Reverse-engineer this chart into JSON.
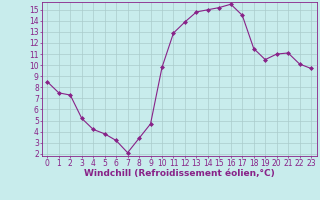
{
  "x": [
    0,
    1,
    2,
    3,
    4,
    5,
    6,
    7,
    8,
    9,
    10,
    11,
    12,
    13,
    14,
    15,
    16,
    17,
    18,
    19,
    20,
    21,
    22,
    23
  ],
  "y": [
    8.5,
    7.5,
    7.3,
    5.2,
    4.2,
    3.8,
    3.2,
    2.1,
    3.4,
    4.7,
    9.8,
    12.9,
    13.9,
    14.8,
    15.0,
    15.2,
    15.5,
    14.5,
    11.5,
    10.5,
    11.0,
    11.1,
    10.1,
    9.7
  ],
  "line_color": "#882288",
  "marker": "D",
  "marker_size": 2.0,
  "bg_color": "#C8ECEC",
  "grid_color": "#AACCCC",
  "ylim": [
    1.8,
    15.7
  ],
  "xlim": [
    -0.5,
    23.5
  ],
  "yticks": [
    2,
    3,
    4,
    5,
    6,
    7,
    8,
    9,
    10,
    11,
    12,
    13,
    14,
    15
  ],
  "xticks": [
    0,
    1,
    2,
    3,
    4,
    5,
    6,
    7,
    8,
    9,
    10,
    11,
    12,
    13,
    14,
    15,
    16,
    17,
    18,
    19,
    20,
    21,
    22,
    23
  ],
  "xlabel": "Windchill (Refroidissement éolien,°C)",
  "tick_color": "#882288",
  "label_color": "#882288",
  "spine_color": "#882288",
  "tick_fontsize": 5.5,
  "xlabel_fontsize": 6.5
}
